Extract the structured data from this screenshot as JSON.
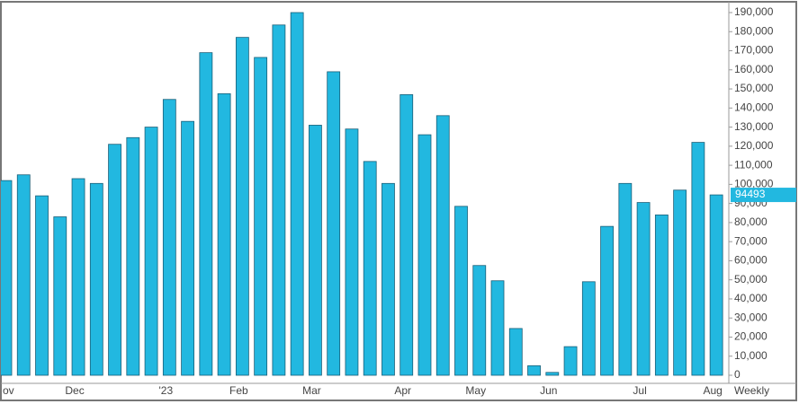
{
  "chart_data": {
    "type": "bar",
    "interval": "Weekly",
    "color": "#22b8e0",
    "grid": false,
    "categories": [
      "ov",
      null,
      null,
      null,
      "Dec",
      null,
      null,
      null,
      null,
      "'23",
      null,
      null,
      null,
      "Feb",
      null,
      null,
      null,
      "Mar",
      null,
      null,
      null,
      null,
      "Apr",
      null,
      null,
      null,
      "May",
      null,
      null,
      null,
      "Jun",
      null,
      null,
      null,
      null,
      "Jul",
      null,
      null,
      null,
      "Aug"
    ],
    "values": [
      102000,
      105000,
      94000,
      83000,
      103000,
      100500,
      121000,
      124500,
      130000,
      144500,
      133000,
      169000,
      147500,
      177000,
      166500,
      183500,
      190000,
      131000,
      159000,
      129000,
      112000,
      100500,
      147000,
      126000,
      136000,
      88500,
      57500,
      49500,
      24500,
      5000,
      1500,
      15000,
      49000,
      78000,
      100500,
      90500,
      84000,
      97000,
      122000,
      94493
    ],
    "ylim": [
      0,
      190000
    ],
    "yticks": [
      0,
      {
        "value": 10000,
        "label": "10,000"
      },
      {
        "value": 20000,
        "label": "20,000"
      },
      {
        "value": 30000,
        "label": "30,000"
      },
      {
        "value": 40000,
        "label": "40,000"
      },
      {
        "value": 50000,
        "label": "50,000"
      },
      {
        "value": 60000,
        "label": "60,000"
      },
      {
        "value": 70000,
        "label": "70,000"
      },
      {
        "value": 80000,
        "label": "80,000"
      },
      {
        "value": 90000,
        "label": "90,000"
      },
      {
        "value": 100000,
        "label": "100,000"
      },
      {
        "value": 110000,
        "label": "110,000"
      },
      {
        "value": 120000,
        "label": "120,000"
      },
      {
        "value": 130000,
        "label": "130,000"
      },
      {
        "value": 140000,
        "label": "140,000"
      },
      {
        "value": 150000,
        "label": "150,000"
      },
      {
        "value": 160000,
        "label": "160,000"
      },
      {
        "value": 170000,
        "label": "170,000"
      },
      {
        "value": 180000,
        "label": "180,000"
      },
      {
        "value": 190000,
        "label": "190,000"
      }
    ]
  }
}
